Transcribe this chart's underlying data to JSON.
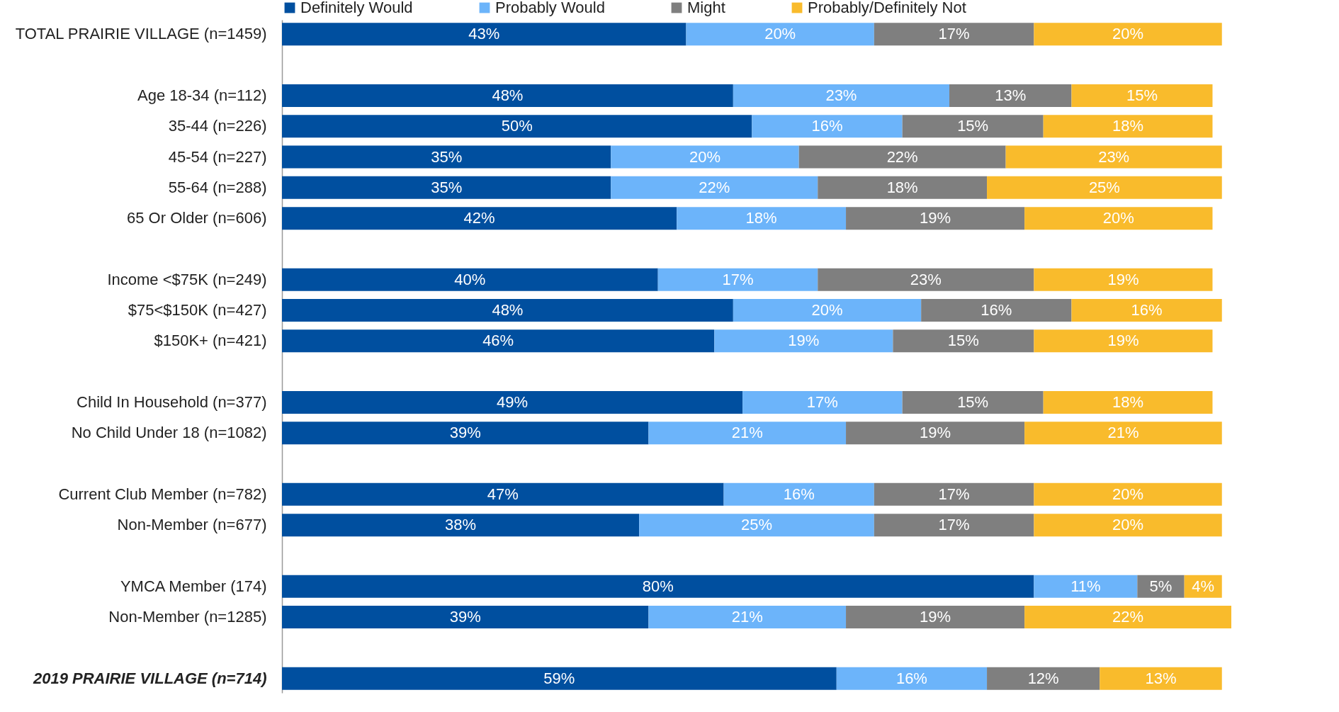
{
  "chart_data": {
    "type": "bar",
    "orientation": "horizontal",
    "stacked": true,
    "legend": "top",
    "tick_labels": "y",
    "categories": [
      "TOTAL PRAIRIE VILLAGE (n=1459)",
      null,
      "Age 18-34 (n=112)",
      "35-44 (n=226)",
      "45-54 (n=227)",
      "55-64 (n=288)",
      "65 Or Older (n=606)",
      null,
      "Income <$75K (n=249)",
      "$75<$150K (n=427)",
      "$150K+ (n=421)",
      null,
      "Child In Household (n=377)",
      "No Child Under 18 (n=1082)",
      null,
      "Current Club Member (n=782)",
      "Non-Member (n=677)",
      null,
      "YMCA Member (174)",
      "Non-Member (n=1285)",
      null,
      "2019 PRAIRIE VILLAGE (n=714)"
    ],
    "series": [
      {
        "name": "Definitely Would",
        "color": "#004f9f",
        "values": [
          43,
          null,
          48,
          50,
          35,
          35,
          42,
          null,
          40,
          48,
          46,
          null,
          49,
          39,
          null,
          47,
          38,
          null,
          80,
          39,
          null,
          59
        ],
        "value_labels": [
          "43%",
          null,
          "48%",
          "50%",
          "35%",
          "35%",
          "42%",
          null,
          "40%",
          "48%",
          "46%",
          null,
          "49%",
          "39%",
          null,
          "47%",
          "38%",
          null,
          "80%",
          "39%",
          null,
          "59%"
        ]
      },
      {
        "name": "Probably Would",
        "color": "#6cb4fa",
        "values": [
          20,
          null,
          23,
          16,
          20,
          22,
          18,
          null,
          17,
          20,
          19,
          null,
          17,
          21,
          null,
          16,
          25,
          null,
          11,
          21,
          null,
          16
        ],
        "value_labels": [
          "20%",
          null,
          "23%",
          "16%",
          "20%",
          "22%",
          "18%",
          null,
          "17%",
          "20%",
          "19%",
          null,
          "17%",
          "21%",
          null,
          "16%",
          "25%",
          null,
          "11%",
          "21%",
          null,
          "16%"
        ]
      },
      {
        "name": "Might",
        "color": "#7f7f7f",
        "values": [
          17,
          null,
          13,
          15,
          22,
          18,
          19,
          null,
          23,
          16,
          15,
          null,
          15,
          19,
          null,
          17,
          17,
          null,
          5,
          19,
          null,
          12
        ],
        "value_labels": [
          "17%",
          null,
          "13%",
          "15%",
          "22%",
          "18%",
          "19%",
          null,
          "23%",
          "16%",
          "15%",
          null,
          "15%",
          "19%",
          null,
          "17%",
          "17%",
          null,
          "5%",
          "19%",
          null,
          "12%"
        ]
      },
      {
        "name": "Probably/Definitely Not",
        "color": "#f9bb2c",
        "values": [
          20,
          null,
          15,
          18,
          23,
          25,
          20,
          null,
          19,
          16,
          19,
          null,
          18,
          21,
          null,
          20,
          20,
          null,
          4,
          22,
          null,
          13
        ],
        "value_labels": [
          "20%",
          null,
          "15%",
          "18%",
          "23%",
          "25%",
          "20%",
          null,
          "19%",
          "16%",
          "19%",
          null,
          "18%",
          "21%",
          null,
          "20%",
          "20%",
          null,
          "4%",
          "22%",
          null,
          "13%"
        ]
      }
    ]
  }
}
